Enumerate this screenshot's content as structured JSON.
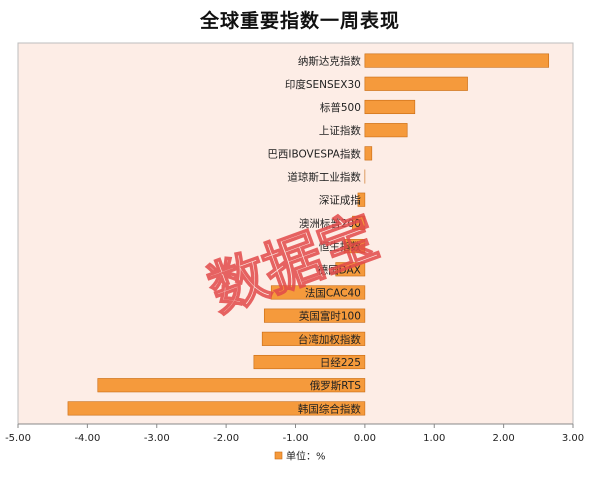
{
  "chart_data": {
    "type": "bar",
    "orientation": "horizontal",
    "title": "全球重要指数一周表现",
    "categories": [
      "纳斯达克指数",
      "印度SENSEX30",
      "标普500",
      "上证指数",
      "巴西IBOVESPA指数",
      "道琼斯工业指数",
      "深证成指",
      "澳洲标普200",
      "恒生指数",
      "德国DAX",
      "法国CAC40",
      "英国富时100",
      "台湾加权指数",
      "日经225",
      "俄罗斯RTS",
      "韩国综合指数"
    ],
    "values": [
      2.65,
      1.48,
      0.72,
      0.61,
      0.1,
      0.0,
      -0.1,
      -0.18,
      -0.3,
      -0.42,
      -1.35,
      -1.45,
      -1.48,
      -1.6,
      -3.85,
      -4.28
    ],
    "xlim": [
      -5,
      3
    ],
    "x_ticks": [
      "-5.00",
      "-4.00",
      "-3.00",
      "-2.00",
      "-1.00",
      "0.00",
      "1.00",
      "2.00",
      "3.00"
    ],
    "legend": {
      "label": "单位：%",
      "position": "bottom"
    },
    "grid": false,
    "colors": {
      "bar_fill": "#f59a3c",
      "bar_stroke": "#c86a12",
      "plot_bg": "#fdede6"
    }
  },
  "watermark": "数据宝"
}
